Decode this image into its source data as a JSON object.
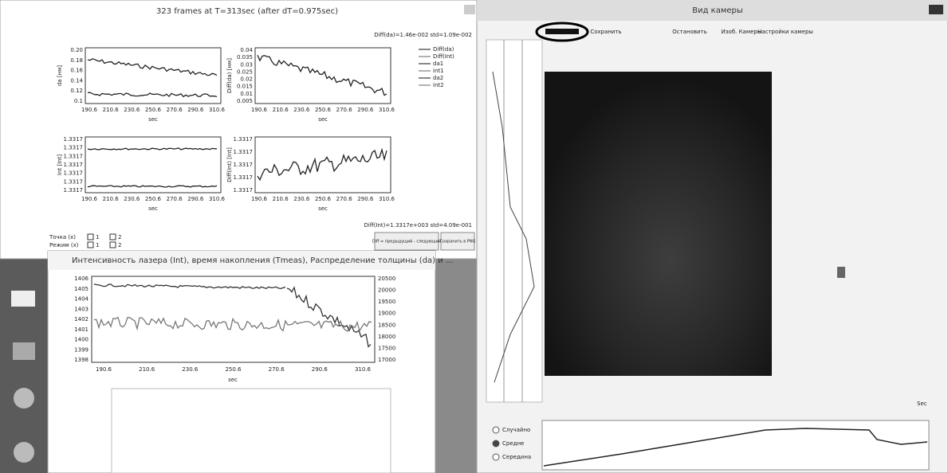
{
  "left_window": {
    "title": "323 frames at T=313sec (after dT=0.975sec)",
    "stats_top": "Diff(da)=1.46e-002  std=1.09e-002",
    "legend": [
      "Diff(da)",
      "Diff(Int)",
      "da1",
      "int1",
      "da2",
      "int2"
    ],
    "plots": [
      {
        "y_label": "da [нм]",
        "x_label": "sec",
        "yticks": [
          "0.20",
          "0.18",
          "0.16",
          "0.14",
          "0.12",
          "0.1"
        ],
        "xticks": [
          "190.6",
          "210.6",
          "230.6",
          "250.6",
          "270.6",
          "290.6",
          "310.6"
        ]
      },
      {
        "y_label": "Diff(da) [нм]",
        "x_label": "sec",
        "yticks": [
          "0.04",
          "0.035",
          "0.03",
          "0.025",
          "0.02",
          "0.015",
          "0.01",
          "0.005"
        ],
        "xticks": [
          "190.6",
          "210.6",
          "230.6",
          "250.6",
          "270.6",
          "290.6",
          "310.6"
        ]
      },
      {
        "y_label": "Int [Int]",
        "x_label": "sec",
        "yticks": [
          "1.3317",
          "1.3317",
          "1.3317",
          "1.3317",
          "1.3317",
          "1.3317",
          "1.3317"
        ],
        "xticks": [
          "190.6",
          "210.6",
          "230.6",
          "250.6",
          "270.6",
          "290.6",
          "310.6"
        ]
      },
      {
        "y_label": "Diff(Int) [Int]",
        "x_label": "sec",
        "yticks": [
          "1.3317",
          "1.3317",
          "1.3317",
          "1.3317",
          "1.3317"
        ],
        "xticks": [
          "190.6",
          "210.6",
          "230.6",
          "250.6",
          "270.6",
          "290.6",
          "310.6"
        ]
      }
    ],
    "stats_bottom": "Diff(Int)=1.3317e+003  std=4.09e-001",
    "point_label": "Точка (x)",
    "mode_label": "Режим (x)",
    "checkboxes": [
      "1",
      "2",
      "1",
      "2"
    ],
    "diff_button": "Diff = предыдущий - следующий",
    "save_button": "Сохранить в PNG"
  },
  "middle_window": {
    "title": "Интенсивность лазера (Int), время накопления (Tmeas), Распределение толщины (da) и ...",
    "yticks_left": [
      "1406",
      "1405",
      "1404",
      "1403",
      "1402",
      "1401",
      "1400",
      "1399",
      "1398"
    ],
    "yticks_right": [
      "20500",
      "20000",
      "19500",
      "19000",
      "18500",
      "18000",
      "17500",
      "17000"
    ],
    "xticks": [
      "190.6",
      "210.6",
      "230.6",
      "250.6",
      "270.6",
      "290.6",
      "310.6"
    ],
    "x_label": "sec"
  },
  "camera_window": {
    "title": "Вид камеры",
    "tabs": [
      "Сохранить",
      "Остановить",
      "Изоб. Камеры",
      "Настройки камеры"
    ],
    "units": "Sec",
    "radio": [
      "Случайно",
      "Средне",
      "Середина"
    ]
  }
}
